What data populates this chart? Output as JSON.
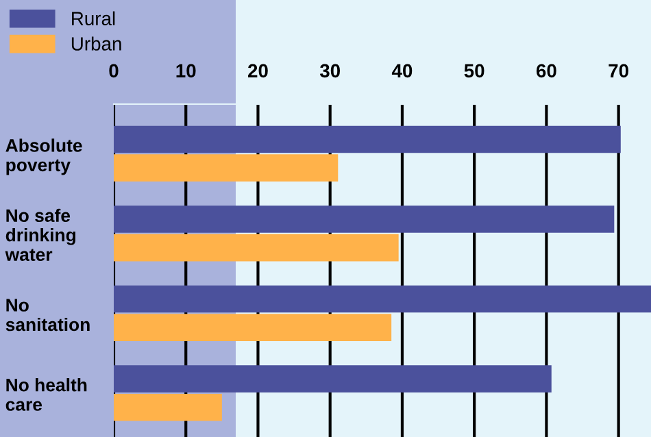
{
  "chart_data": {
    "type": "bar",
    "orientation": "horizontal",
    "categories": [
      "Absolute\npoverty",
      "No safe\ndrinking\nwater",
      "No\nsanitation",
      "No health\ncare"
    ],
    "series": [
      {
        "name": "Rural",
        "color": "#4b519c",
        "values": [
          70.3,
          69.4,
          74.5,
          60.7
        ]
      },
      {
        "name": "Urban",
        "color": "#ffb24a",
        "values": [
          31.1,
          39.5,
          38.5,
          15
        ]
      }
    ],
    "xlim": [
      0,
      74.5
    ],
    "xticks": [
      0,
      10,
      20,
      30,
      40,
      50,
      60,
      70
    ],
    "grid": "x",
    "legend": "top left"
  }
}
